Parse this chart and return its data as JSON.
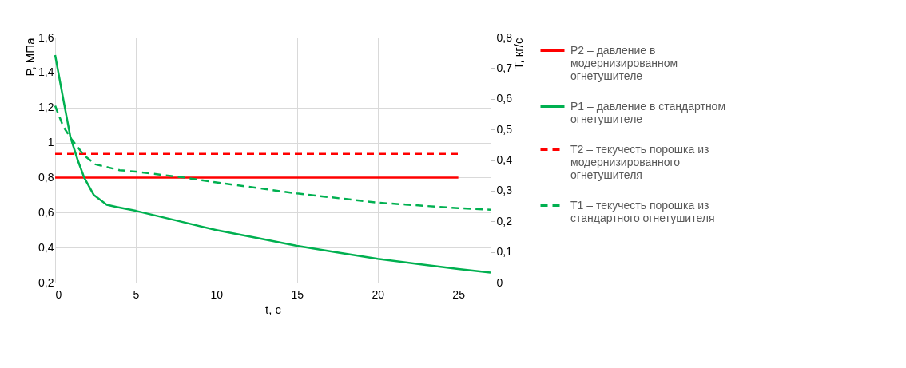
{
  "chart_data": {
    "type": "line",
    "xlabel": "t, с",
    "ylabel": "P, МПа",
    "y2label": "T, кг/с",
    "xlim": [
      0,
      27
    ],
    "xticks": [
      0,
      5,
      10,
      15,
      20,
      25
    ],
    "ylim": [
      0.2,
      1.6
    ],
    "yticks": [
      {
        "value": 0.2,
        "label": "0,2"
      },
      {
        "value": 0.4,
        "label": "0,4"
      },
      {
        "value": 0.6,
        "label": "0,6"
      },
      {
        "value": 0.8,
        "label": "0,8"
      },
      1,
      {
        "value": 1.2,
        "label": "1,2"
      },
      {
        "value": 1.4,
        "label": "1,4"
      },
      {
        "value": 1.6,
        "label": "1,6"
      }
    ],
    "y2lim": [
      0,
      0.8
    ],
    "y2ticks": [
      0,
      {
        "value": 0.1,
        "label": "0,1"
      },
      {
        "value": 0.2,
        "label": "0,2"
      },
      {
        "value": 0.3,
        "label": "0,3"
      },
      {
        "value": 0.4,
        "label": "0,4"
      },
      {
        "value": 0.5,
        "label": "0,5"
      },
      {
        "value": 0.6,
        "label": "0,6"
      },
      {
        "value": 0.7,
        "label": "0,7"
      },
      {
        "value": 0.8,
        "label": "0,8"
      }
    ],
    "grid": true,
    "legend": "right",
    "marker": "none",
    "series": [
      {
        "name": "P2 – давление в модернизированном огнетушителе",
        "color": "#ff0000",
        "line_style": "solid",
        "x": [
          0,
          25
        ],
        "values": [
          0.8,
          0.8
        ]
      },
      {
        "name": "P1 – давление в стандартном огнетушителе",
        "color": "#00b050",
        "line_style": "solid",
        "x": [
          0,
          0.5,
          0.95,
          1.4,
          1.8,
          2.4,
          3.2,
          3.8,
          5,
          7.5,
          10,
          12.5,
          15,
          17.5,
          20,
          22.5,
          25,
          27
        ],
        "values": [
          1.5,
          1.25,
          1.03,
          0.9,
          0.8,
          0.7,
          0.645,
          0.632,
          0.61,
          0.555,
          0.5,
          0.455,
          0.41,
          0.372,
          0.336,
          0.306,
          0.278,
          0.257
        ]
      },
      {
        "name": "T2 – текучесть порошка из модернизированного огнетушителя",
        "color": "#ff0000",
        "line_style": "dashed",
        "axis": "y2",
        "x": [
          0,
          25
        ],
        "values": [
          0.42,
          0.42
        ]
      },
      {
        "name": "T1 – текучесть порошка из стандартного огнетушителя",
        "color": "#00b050",
        "line_style": "dashed",
        "axis": "y2",
        "x": [
          0,
          0.5,
          1,
          1.8,
          2.5,
          4,
          5,
          8,
          10,
          15,
          20,
          25,
          27
        ],
        "values": [
          0.577,
          0.51,
          0.469,
          0.415,
          0.386,
          0.367,
          0.362,
          0.343,
          0.327,
          0.291,
          0.261,
          0.243,
          0.238
        ]
      }
    ]
  }
}
